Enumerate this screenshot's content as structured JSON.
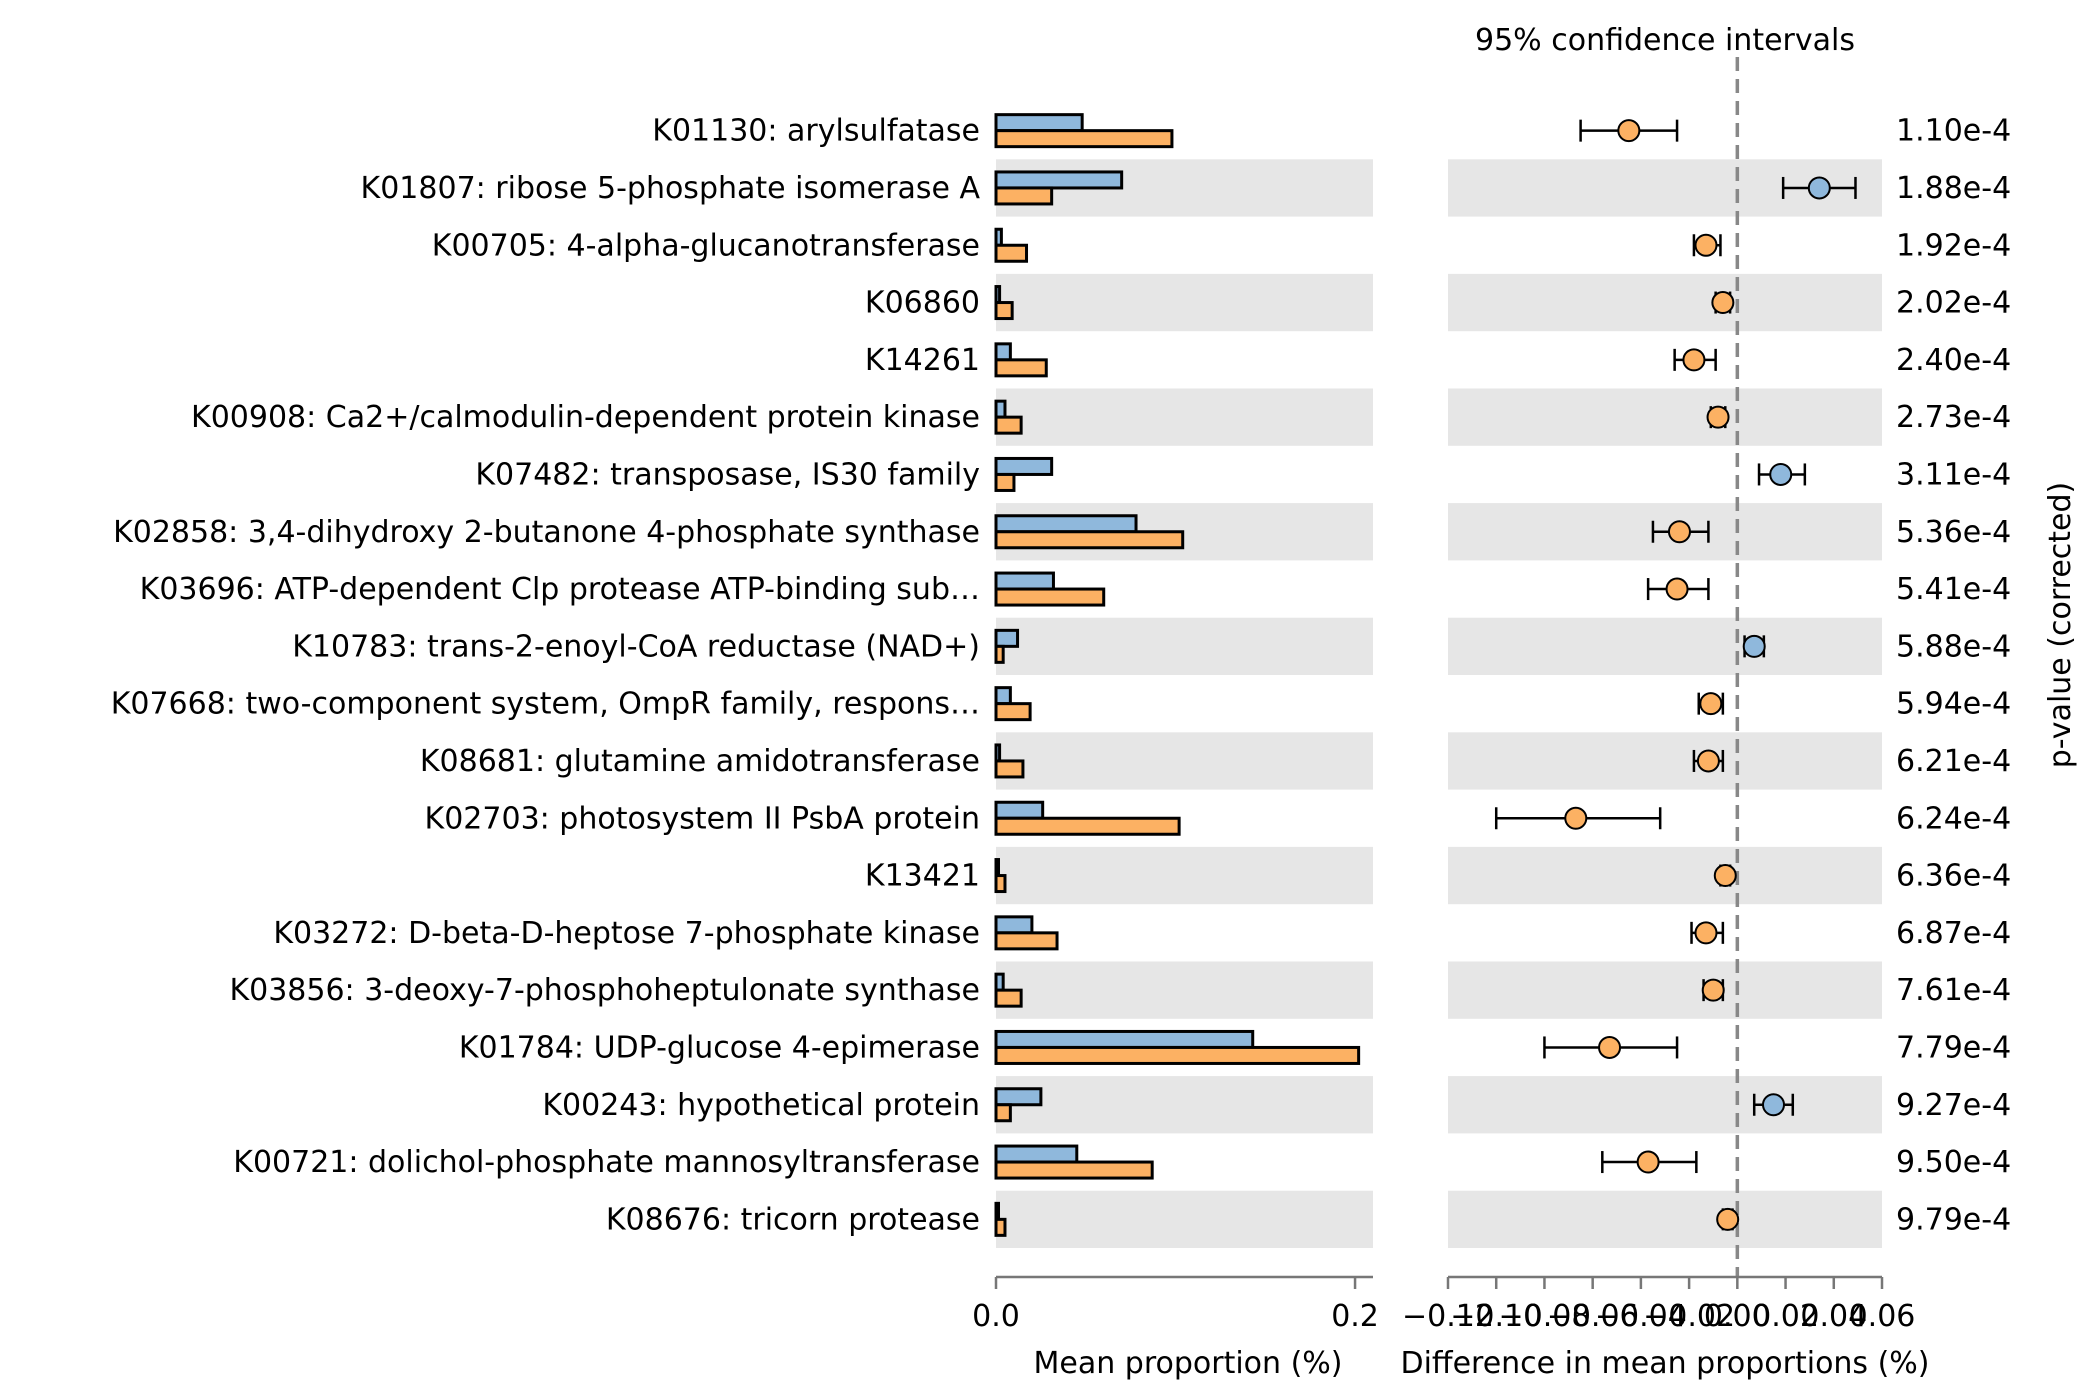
{
  "chart_data": {
    "type": "extended-error-bar",
    "title": "95% confidence intervals",
    "left_panel": {
      "type": "bar",
      "xlabel": "Mean proportion (%)",
      "xlim": [
        0.0,
        0.21
      ],
      "xticks": [
        0.0,
        0.2
      ],
      "xtick_labels": [
        "0.0",
        "0.2"
      ]
    },
    "right_panel": {
      "type": "errorbar",
      "xlabel": "Difference in mean proportions (%)",
      "xlim": [
        -0.12,
        0.06
      ],
      "xticks": [
        -0.12,
        -0.1,
        -0.08,
        -0.06,
        -0.04,
        -0.02,
        0.0,
        0.02,
        0.04,
        0.06
      ],
      "xtick_labels": [
        "−0.12",
        "−0.10",
        "−0.08",
        "−0.06",
        "−0.04",
        "−0.02",
        "0.00",
        "0.02",
        "0.04",
        "0.06"
      ],
      "reference_line": 0.0
    },
    "pvalue_axis_label": "p-value (corrected)",
    "colors": {
      "group1": "#8fb8dc",
      "group2": "#fcb163",
      "stripe": "#e6e6e6",
      "refline": "#888888",
      "axis": "#777777"
    },
    "rows": [
      {
        "label": "K01130: arylsulfatase",
        "group1": 0.048,
        "group2": 0.098,
        "diff": -0.045,
        "ci": [
          -0.065,
          -0.025
        ],
        "pvalue": "1.10e-4"
      },
      {
        "label": "K01807: ribose 5-phosphate isomerase A",
        "group1": 0.07,
        "group2": 0.031,
        "diff": 0.034,
        "ci": [
          0.019,
          0.049
        ],
        "pvalue": "1.88e-4"
      },
      {
        "label": "K00705: 4-alpha-glucanotransferase",
        "group1": 0.003,
        "group2": 0.017,
        "diff": -0.013,
        "ci": [
          -0.018,
          -0.007
        ],
        "pvalue": "1.92e-4"
      },
      {
        "label": "K06860",
        "group1": 0.002,
        "group2": 0.009,
        "diff": -0.006,
        "ci": [
          -0.009,
          -0.003
        ],
        "pvalue": "2.02e-4"
      },
      {
        "label": "K14261",
        "group1": 0.008,
        "group2": 0.028,
        "diff": -0.018,
        "ci": [
          -0.026,
          -0.009
        ],
        "pvalue": "2.40e-4"
      },
      {
        "label": "K00908: Ca2+/calmodulin-dependent protein kinase",
        "group1": 0.005,
        "group2": 0.014,
        "diff": -0.008,
        "ci": [
          -0.011,
          -0.005
        ],
        "pvalue": "2.73e-4"
      },
      {
        "label": "K07482: transposase, IS30 family",
        "group1": 0.031,
        "group2": 0.01,
        "diff": 0.018,
        "ci": [
          0.009,
          0.028
        ],
        "pvalue": "3.11e-4"
      },
      {
        "label": "K02858: 3,4-dihydroxy 2-butanone 4-phosphate synthase",
        "group1": 0.078,
        "group2": 0.104,
        "diff": -0.024,
        "ci": [
          -0.035,
          -0.012
        ],
        "pvalue": "5.36e-4"
      },
      {
        "label": "K03696: ATP-dependent Clp protease ATP-binding sub…",
        "group1": 0.032,
        "group2": 0.06,
        "diff": -0.025,
        "ci": [
          -0.037,
          -0.012
        ],
        "pvalue": "5.41e-4"
      },
      {
        "label": "K10783: trans-2-enoyl-CoA reductase (NAD+)",
        "group1": 0.012,
        "group2": 0.004,
        "diff": 0.007,
        "ci": [
          0.003,
          0.011
        ],
        "pvalue": "5.88e-4"
      },
      {
        "label": "K07668: two-component system, OmpR family, respons…",
        "group1": 0.008,
        "group2": 0.019,
        "diff": -0.011,
        "ci": [
          -0.016,
          -0.006
        ],
        "pvalue": "5.94e-4"
      },
      {
        "label": "K08681: glutamine amidotransferase",
        "group1": 0.002,
        "group2": 0.015,
        "diff": -0.012,
        "ci": [
          -0.018,
          -0.006
        ],
        "pvalue": "6.21e-4"
      },
      {
        "label": "K02703: photosystem II PsbA protein",
        "group1": 0.026,
        "group2": 0.102,
        "diff": -0.067,
        "ci": [
          -0.1,
          -0.032
        ],
        "pvalue": "6.24e-4"
      },
      {
        "label": "K13421",
        "group1": 0.001,
        "group2": 0.005,
        "diff": -0.005,
        "ci": [
          -0.007,
          -0.003
        ],
        "pvalue": "6.36e-4"
      },
      {
        "label": "K03272: D-beta-D-heptose 7-phosphate kinase",
        "group1": 0.02,
        "group2": 0.034,
        "diff": -0.013,
        "ci": [
          -0.019,
          -0.006
        ],
        "pvalue": "6.87e-4"
      },
      {
        "label": "K03856: 3-deoxy-7-phosphoheptulonate synthase",
        "group1": 0.004,
        "group2": 0.014,
        "diff": -0.01,
        "ci": [
          -0.014,
          -0.006
        ],
        "pvalue": "7.61e-4"
      },
      {
        "label": "K01784: UDP-glucose 4-epimerase",
        "group1": 0.143,
        "group2": 0.202,
        "diff": -0.053,
        "ci": [
          -0.08,
          -0.025
        ],
        "pvalue": "7.79e-4"
      },
      {
        "label": "K00243: hypothetical protein",
        "group1": 0.025,
        "group2": 0.008,
        "diff": 0.015,
        "ci": [
          0.007,
          0.023
        ],
        "pvalue": "9.27e-4"
      },
      {
        "label": "K00721: dolichol-phosphate mannosyltransferase",
        "group1": 0.045,
        "group2": 0.087,
        "diff": -0.037,
        "ci": [
          -0.056,
          -0.017
        ],
        "pvalue": "9.50e-4"
      },
      {
        "label": "K08676: tricorn protease",
        "group1": 0.001,
        "group2": 0.005,
        "diff": -0.004,
        "ci": [
          -0.006,
          -0.002
        ],
        "pvalue": "9.79e-4"
      }
    ]
  }
}
